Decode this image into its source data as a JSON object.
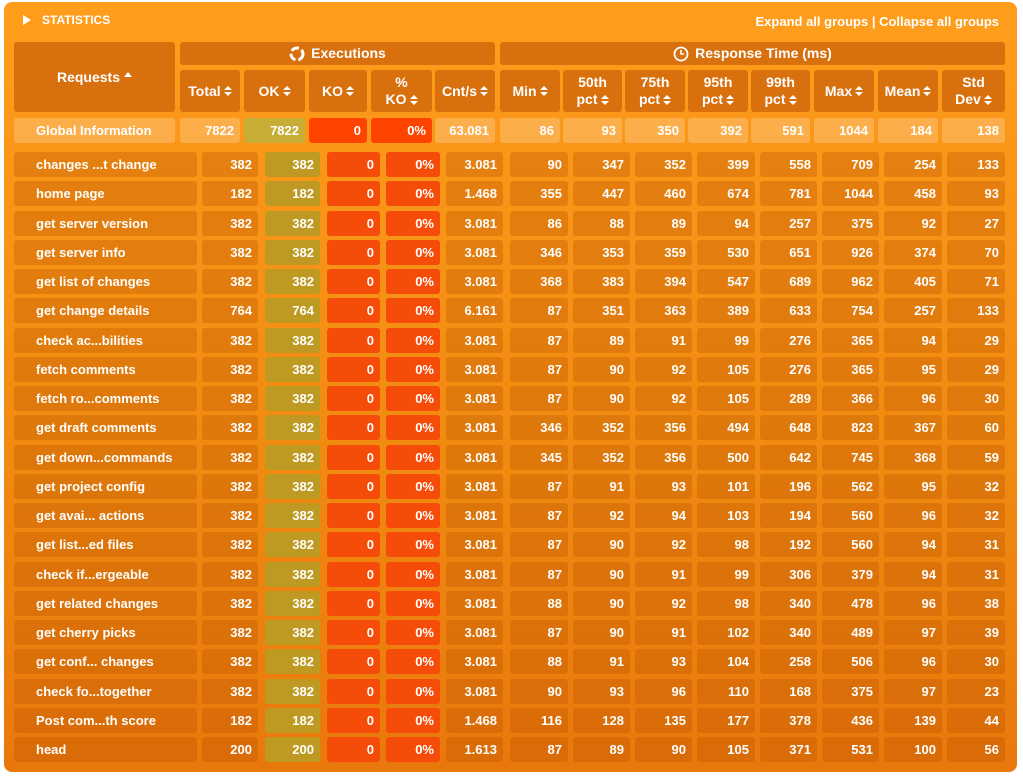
{
  "header": {
    "title": "STATISTICS",
    "expand": "Expand all groups",
    "separator": "|",
    "collapse": "Collapse all groups"
  },
  "table": {
    "requests_header": "Requests",
    "group_headers": [
      "Executions",
      "Response Time (ms)"
    ],
    "columns": [
      "Total",
      "OK",
      "KO",
      "% KO",
      "Cnt/s",
      "Min",
      "50th pct",
      "75th pct",
      "95th pct",
      "99th pct",
      "Max",
      "Mean",
      "Std Dev"
    ],
    "global": [
      "Global Information",
      "7822",
      "7822",
      "0",
      "0%",
      "63.081",
      "86",
      "93",
      "350",
      "392",
      "591",
      "1044",
      "184",
      "138"
    ],
    "rows": [
      [
        "changes ...t change",
        "382",
        "382",
        "0",
        "0%",
        "3.081",
        "90",
        "347",
        "352",
        "399",
        "558",
        "709",
        "254",
        "133"
      ],
      [
        "home page",
        "182",
        "182",
        "0",
        "0%",
        "1.468",
        "355",
        "447",
        "460",
        "674",
        "781",
        "1044",
        "458",
        "93"
      ],
      [
        "get server version",
        "382",
        "382",
        "0",
        "0%",
        "3.081",
        "86",
        "88",
        "89",
        "94",
        "257",
        "375",
        "92",
        "27"
      ],
      [
        "get server info",
        "382",
        "382",
        "0",
        "0%",
        "3.081",
        "346",
        "353",
        "359",
        "530",
        "651",
        "926",
        "374",
        "70"
      ],
      [
        "get list of changes",
        "382",
        "382",
        "0",
        "0%",
        "3.081",
        "368",
        "383",
        "394",
        "547",
        "689",
        "962",
        "405",
        "71"
      ],
      [
        "get change details",
        "764",
        "764",
        "0",
        "0%",
        "6.161",
        "87",
        "351",
        "363",
        "389",
        "633",
        "754",
        "257",
        "133"
      ],
      [
        "check ac...bilities",
        "382",
        "382",
        "0",
        "0%",
        "3.081",
        "87",
        "89",
        "91",
        "99",
        "276",
        "365",
        "94",
        "29"
      ],
      [
        "fetch comments",
        "382",
        "382",
        "0",
        "0%",
        "3.081",
        "87",
        "90",
        "92",
        "105",
        "276",
        "365",
        "95",
        "29"
      ],
      [
        "fetch ro...comments",
        "382",
        "382",
        "0",
        "0%",
        "3.081",
        "87",
        "90",
        "92",
        "105",
        "289",
        "366",
        "96",
        "30"
      ],
      [
        "get draft comments",
        "382",
        "382",
        "0",
        "0%",
        "3.081",
        "346",
        "352",
        "356",
        "494",
        "648",
        "823",
        "367",
        "60"
      ],
      [
        "get down...commands",
        "382",
        "382",
        "0",
        "0%",
        "3.081",
        "345",
        "352",
        "356",
        "500",
        "642",
        "745",
        "368",
        "59"
      ],
      [
        "get project config",
        "382",
        "382",
        "0",
        "0%",
        "3.081",
        "87",
        "91",
        "93",
        "101",
        "196",
        "562",
        "95",
        "32"
      ],
      [
        "get avai... actions",
        "382",
        "382",
        "0",
        "0%",
        "3.081",
        "87",
        "92",
        "94",
        "103",
        "194",
        "560",
        "96",
        "32"
      ],
      [
        "get list...ed files",
        "382",
        "382",
        "0",
        "0%",
        "3.081",
        "87",
        "90",
        "92",
        "98",
        "192",
        "560",
        "94",
        "31"
      ],
      [
        "check if...ergeable",
        "382",
        "382",
        "0",
        "0%",
        "3.081",
        "87",
        "90",
        "91",
        "99",
        "306",
        "379",
        "94",
        "31"
      ],
      [
        "get related changes",
        "382",
        "382",
        "0",
        "0%",
        "3.081",
        "88",
        "90",
        "92",
        "98",
        "340",
        "478",
        "96",
        "38"
      ],
      [
        "get cherry picks",
        "382",
        "382",
        "0",
        "0%",
        "3.081",
        "87",
        "90",
        "91",
        "102",
        "340",
        "489",
        "97",
        "39"
      ],
      [
        "get conf... changes",
        "382",
        "382",
        "0",
        "0%",
        "3.081",
        "88",
        "91",
        "93",
        "104",
        "258",
        "506",
        "96",
        "30"
      ],
      [
        "check fo...together",
        "382",
        "382",
        "0",
        "0%",
        "3.081",
        "90",
        "93",
        "96",
        "110",
        "168",
        "375",
        "97",
        "23"
      ],
      [
        "Post com...th score",
        "182",
        "182",
        "0",
        "0%",
        "1.468",
        "116",
        "128",
        "135",
        "177",
        "378",
        "436",
        "139",
        "44"
      ],
      [
        "head",
        "200",
        "200",
        "0",
        "0%",
        "1.613",
        "87",
        "89",
        "90",
        "105",
        "371",
        "531",
        "100",
        "56"
      ]
    ]
  }
}
